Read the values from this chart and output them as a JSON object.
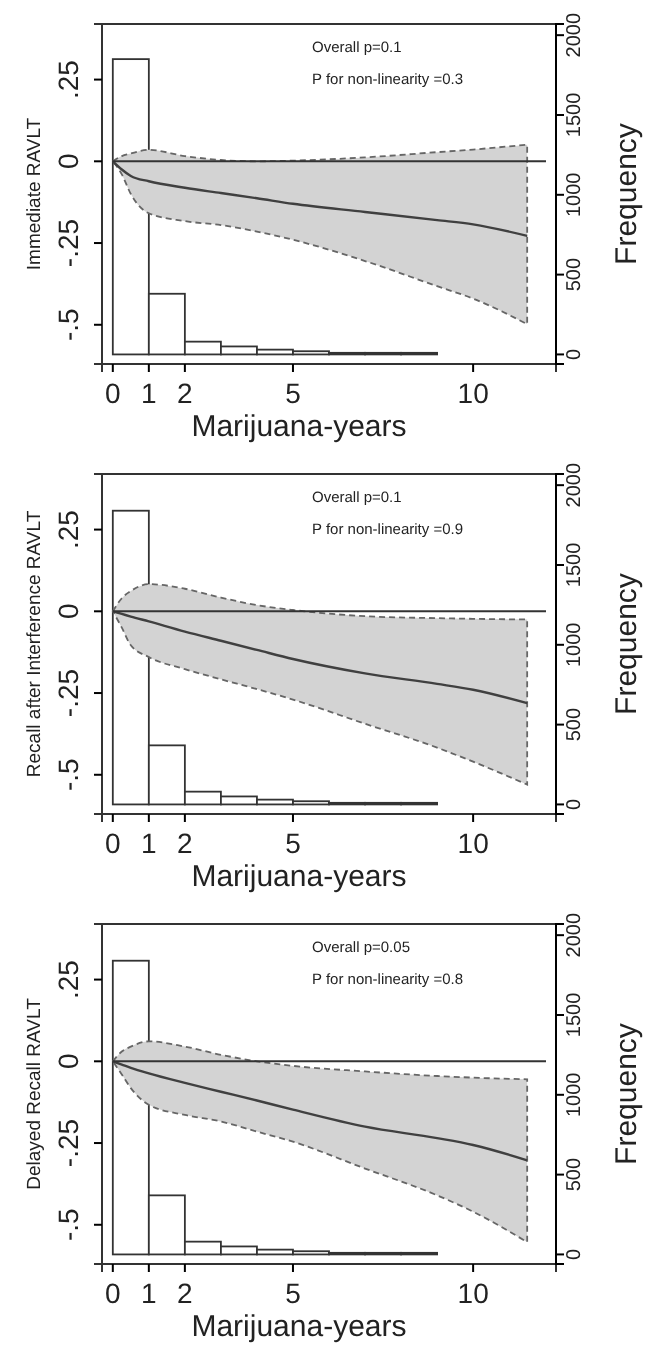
{
  "chart_data": [
    {
      "type": "line",
      "xlabel": "Marijuana-years",
      "ylabel": "Immediate RAVLT",
      "y2label": "Frequency",
      "annotations": [
        "Overall p=0.1",
        "P for non-linearity =0.3"
      ],
      "xlim": [
        -0.3,
        12.3
      ],
      "xticks": [
        0,
        1,
        2,
        5,
        10
      ],
      "ylim": [
        -0.62,
        0.42
      ],
      "yticks": [
        {
          "value": 0.25,
          "label": ".25"
        },
        {
          "value": 0,
          "label": "0"
        },
        {
          "value": -0.25,
          "label": "-.25"
        },
        {
          "value": -0.5,
          "label": "-.5"
        }
      ],
      "y2lim": [
        -60,
        2070
      ],
      "y2ticks": [
        0,
        500,
        1000,
        1500,
        2000
      ],
      "ref_lines": [
        {
          "axis": "y",
          "value": 0
        }
      ],
      "series": [
        {
          "type": "histogram",
          "axis": "y2",
          "color": "#ffffff",
          "bins": [
            0,
            1,
            2,
            3,
            4,
            5,
            6,
            7,
            8,
            9
          ],
          "values": [
            1850,
            380,
            80,
            50,
            30,
            20,
            10,
            10,
            10
          ]
        },
        {
          "color": "#404040",
          "x": [
            0,
            0.25,
            0.5,
            1,
            2,
            3,
            4,
            5,
            7,
            9,
            10,
            11.5
          ],
          "values": [
            0,
            -0.025,
            -0.045,
            -0.061,
            -0.081,
            -0.097,
            -0.113,
            -0.13,
            -0.155,
            -0.18,
            -0.193,
            -0.228
          ],
          "lower": [
            0,
            -0.04,
            -0.1,
            -0.159,
            -0.183,
            -0.195,
            -0.215,
            -0.24,
            -0.305,
            -0.382,
            -0.42,
            -0.498
          ],
          "upper": [
            0,
            0.016,
            0.024,
            0.035,
            0.016,
            0.004,
            0,
            0.002,
            0.012,
            0.028,
            0.036,
            0.051
          ]
        }
      ]
    },
    {
      "type": "line",
      "xlabel": "Marijuana-years",
      "ylabel": "Recall after Interference RAVLT",
      "y2label": "Frequency",
      "annotations": [
        "Overall p=0.1",
        "P for non-linearity =0.9"
      ],
      "xlim": [
        -0.3,
        12.3
      ],
      "xticks": [
        0,
        1,
        2,
        5,
        10
      ],
      "ylim": [
        -0.62,
        0.42
      ],
      "yticks": [
        {
          "value": 0.25,
          "label": ".25"
        },
        {
          "value": 0,
          "label": "0"
        },
        {
          "value": -0.25,
          "label": "-.25"
        },
        {
          "value": -0.5,
          "label": "-.5"
        }
      ],
      "y2lim": [
        -60,
        2070
      ],
      "y2ticks": [
        0,
        500,
        1000,
        1500,
        2000
      ],
      "ref_lines": [
        {
          "axis": "y",
          "value": 0
        }
      ],
      "series": [
        {
          "type": "histogram",
          "axis": "y2",
          "color": "#ffffff",
          "bins": [
            0,
            1,
            2,
            3,
            4,
            5,
            6,
            7,
            8,
            9
          ],
          "values": [
            1840,
            370,
            80,
            50,
            30,
            20,
            10,
            10,
            10
          ]
        },
        {
          "color": "#404040",
          "x": [
            0,
            0.25,
            0.5,
            1,
            2,
            3,
            4,
            5,
            7,
            9,
            10,
            11.5
          ],
          "values": [
            0,
            -0.008,
            -0.016,
            -0.031,
            -0.062,
            -0.09,
            -0.118,
            -0.146,
            -0.19,
            -0.222,
            -0.24,
            -0.281
          ],
          "lower": [
            0,
            -0.05,
            -0.104,
            -0.14,
            -0.177,
            -0.208,
            -0.238,
            -0.27,
            -0.344,
            -0.417,
            -0.46,
            -0.53
          ],
          "upper": [
            0,
            0.04,
            0.062,
            0.083,
            0.069,
            0.042,
            0.019,
            0.004,
            -0.015,
            -0.021,
            -0.023,
            -0.025
          ]
        }
      ]
    },
    {
      "type": "line",
      "xlabel": "Marijuana-years",
      "ylabel": "Delayed Recall RAVLT",
      "y2label": "Frequency",
      "annotations": [
        "Overall p=0.05",
        "P for non-linearity =0.8"
      ],
      "xlim": [
        -0.3,
        12.3
      ],
      "xticks": [
        0,
        1,
        2,
        5,
        10
      ],
      "ylim": [
        -0.62,
        0.42
      ],
      "yticks": [
        {
          "value": 0.25,
          "label": ".25"
        },
        {
          "value": 0,
          "label": "0"
        },
        {
          "value": -0.25,
          "label": "-.25"
        },
        {
          "value": -0.5,
          "label": "-.5"
        }
      ],
      "y2lim": [
        -60,
        2070
      ],
      "y2ticks": [
        0,
        500,
        1000,
        1500,
        2000
      ],
      "ref_lines": [
        {
          "axis": "y",
          "value": 0
        }
      ],
      "series": [
        {
          "type": "histogram",
          "axis": "y2",
          "color": "#ffffff",
          "bins": [
            0,
            1,
            2,
            3,
            4,
            5,
            6,
            7,
            8,
            9
          ],
          "values": [
            1840,
            370,
            80,
            50,
            30,
            20,
            10,
            10,
            10
          ]
        },
        {
          "color": "#404040",
          "x": [
            0,
            0.25,
            0.5,
            1,
            2,
            3,
            4,
            5,
            7,
            9,
            10,
            11.5
          ],
          "values": [
            0,
            -0.01,
            -0.02,
            -0.037,
            -0.066,
            -0.093,
            -0.12,
            -0.148,
            -0.2,
            -0.235,
            -0.256,
            -0.303
          ],
          "lower": [
            0,
            -0.04,
            -0.082,
            -0.133,
            -0.164,
            -0.184,
            -0.215,
            -0.246,
            -0.328,
            -0.41,
            -0.46,
            -0.553
          ],
          "upper": [
            0,
            0.03,
            0.045,
            0.061,
            0.045,
            0.02,
            0,
            -0.014,
            -0.031,
            -0.045,
            -0.05,
            -0.055
          ]
        }
      ]
    }
  ]
}
